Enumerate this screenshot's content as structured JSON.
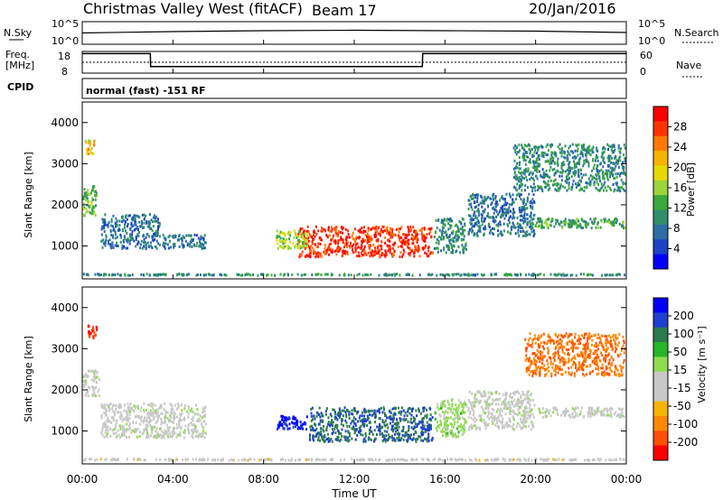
{
  "header": {
    "radar": "Christmas Valley West (fitACF)",
    "beam": "Beam 17",
    "date": "20/Jan/2016"
  },
  "nsky": {
    "left_label": "N.Sky",
    "right_label": "N.Search",
    "left_ticks": [
      "10^5",
      "10^0"
    ],
    "right_ticks": [
      "10^5",
      "10^0"
    ]
  },
  "freq": {
    "left_label_1": "Freq.",
    "left_label_2": "[MHz]",
    "left_ticks": [
      "18",
      "8"
    ],
    "right_label": "Nave",
    "right_ticks": [
      "60",
      "0"
    ]
  },
  "cpid": {
    "label": "CPID",
    "text": "normal (fast) -151 RF"
  },
  "power_panel": {
    "ylabel": "Slant Range [km]",
    "cbar_label": "Power [dB]",
    "cbar_ticks": [
      "28",
      "24",
      "20",
      "16",
      "12",
      "8",
      "4"
    ],
    "cbar_colors": [
      "#ff0000",
      "#ff3300",
      "#ff7a00",
      "#f5b400",
      "#e8d800",
      "#9ad43a",
      "#3aa83a",
      "#2f8f6a",
      "#2b6ea6",
      "#1c44c4",
      "#0000ff"
    ]
  },
  "velocity_panel": {
    "ylabel": "Slant Range [km]",
    "cbar_label": "Velocity [m s⁻¹]",
    "cbar_ticks": [
      "200",
      "100",
      "50",
      "15",
      "-15",
      "-50",
      "-100",
      "-200"
    ],
    "cbar_colors": [
      "#0000ff",
      "#1e3fd0",
      "#2a7a50",
      "#28b428",
      "#8fdc50",
      "#c8c8c8",
      "#c8c8c8",
      "#f5b400",
      "#ff8800",
      "#ff5000",
      "#ff0000"
    ]
  },
  "xaxis": {
    "label": "Time UT",
    "ticks": [
      "00:00",
      "04:00",
      "08:00",
      "12:00",
      "16:00",
      "20:00",
      "00:00"
    ]
  },
  "chart_data": [
    {
      "type": "line",
      "title": "N.Sky / N.Search",
      "x": [
        "00:00",
        "04:00",
        "08:00",
        "12:00",
        "16:00",
        "20:00",
        "24:00"
      ],
      "series": [
        {
          "name": "N.Sky",
          "values": [
            2.5,
            2.8,
            3.0,
            3.1,
            3.0,
            2.9,
            2.6
          ]
        }
      ],
      "ylim": [
        0,
        5
      ]
    },
    {
      "type": "line",
      "title": "Freq. / Nave",
      "x": [
        "00:00",
        "03:00",
        "03:01",
        "15:00",
        "15:01",
        "24:00"
      ],
      "series": [
        {
          "name": "Freq.",
          "values": [
            17,
            17,
            11,
            11,
            17,
            17
          ]
        },
        {
          "name": "Nave",
          "values": [
            30,
            30,
            30,
            30,
            30,
            30
          ]
        }
      ],
      "ylim": [
        8,
        18
      ]
    },
    {
      "type": "heatmap",
      "title": "Power [dB]",
      "xlim": [
        0,
        24
      ],
      "ylim": [
        200,
        4500
      ],
      "regions": [
        {
          "t0": 0.1,
          "t1": 0.6,
          "r0": 3200,
          "r1": 3600,
          "level": 20
        },
        {
          "t0": 0.0,
          "t1": 0.7,
          "r0": 1700,
          "r1": 2500,
          "level": 14
        },
        {
          "t0": 0.8,
          "t1": 3.5,
          "r0": 900,
          "r1": 1800,
          "level": 8
        },
        {
          "t0": 3.5,
          "t1": 5.5,
          "r0": 900,
          "r1": 1300,
          "level": 8
        },
        {
          "t0": 9.5,
          "t1": 15.5,
          "r0": 700,
          "r1": 1500,
          "level": 28
        },
        {
          "t0": 8.5,
          "t1": 10.0,
          "r0": 900,
          "r1": 1400,
          "level": 16
        },
        {
          "t0": 15.5,
          "t1": 17.0,
          "r0": 800,
          "r1": 1700,
          "level": 10
        },
        {
          "t0": 17.0,
          "t1": 20.0,
          "r0": 1200,
          "r1": 2300,
          "level": 8
        },
        {
          "t0": 19.5,
          "t1": 24.0,
          "r0": 1400,
          "r1": 1700,
          "level": 12
        },
        {
          "t0": 19.0,
          "t1": 24.0,
          "r0": 2300,
          "r1": 3500,
          "level": 10
        },
        {
          "t0": 0.0,
          "t1": 24.0,
          "r0": 250,
          "r1": 350,
          "level": 10
        }
      ]
    },
    {
      "type": "heatmap",
      "title": "Velocity [m s⁻¹]",
      "xlim": [
        0,
        24
      ],
      "ylim": [
        200,
        4500
      ],
      "regions": [
        {
          "t0": 0.2,
          "t1": 0.7,
          "r0": 3200,
          "r1": 3600,
          "level": -200
        },
        {
          "t0": 0.0,
          "t1": 0.8,
          "r0": 1800,
          "r1": 2500,
          "level": 0
        },
        {
          "t0": 0.8,
          "t1": 5.5,
          "r0": 800,
          "r1": 1700,
          "level": 0
        },
        {
          "t0": 8.5,
          "t1": 10.0,
          "r0": 1000,
          "r1": 1400,
          "level": 200
        },
        {
          "t0": 10.0,
          "t1": 15.5,
          "r0": 700,
          "r1": 1600,
          "level": 150
        },
        {
          "t0": 15.5,
          "t1": 17.0,
          "r0": 800,
          "r1": 1800,
          "level": 40
        },
        {
          "t0": 17.0,
          "t1": 20.0,
          "r0": 1000,
          "r1": 2000,
          "level": 0
        },
        {
          "t0": 20.0,
          "t1": 24.0,
          "r0": 1300,
          "r1": 1600,
          "level": 0
        },
        {
          "t0": 19.5,
          "t1": 24.0,
          "r0": 2300,
          "r1": 3400,
          "level": -150
        },
        {
          "t0": 0.0,
          "t1": 24.0,
          "r0": 250,
          "r1": 350,
          "level": -40
        }
      ]
    }
  ]
}
